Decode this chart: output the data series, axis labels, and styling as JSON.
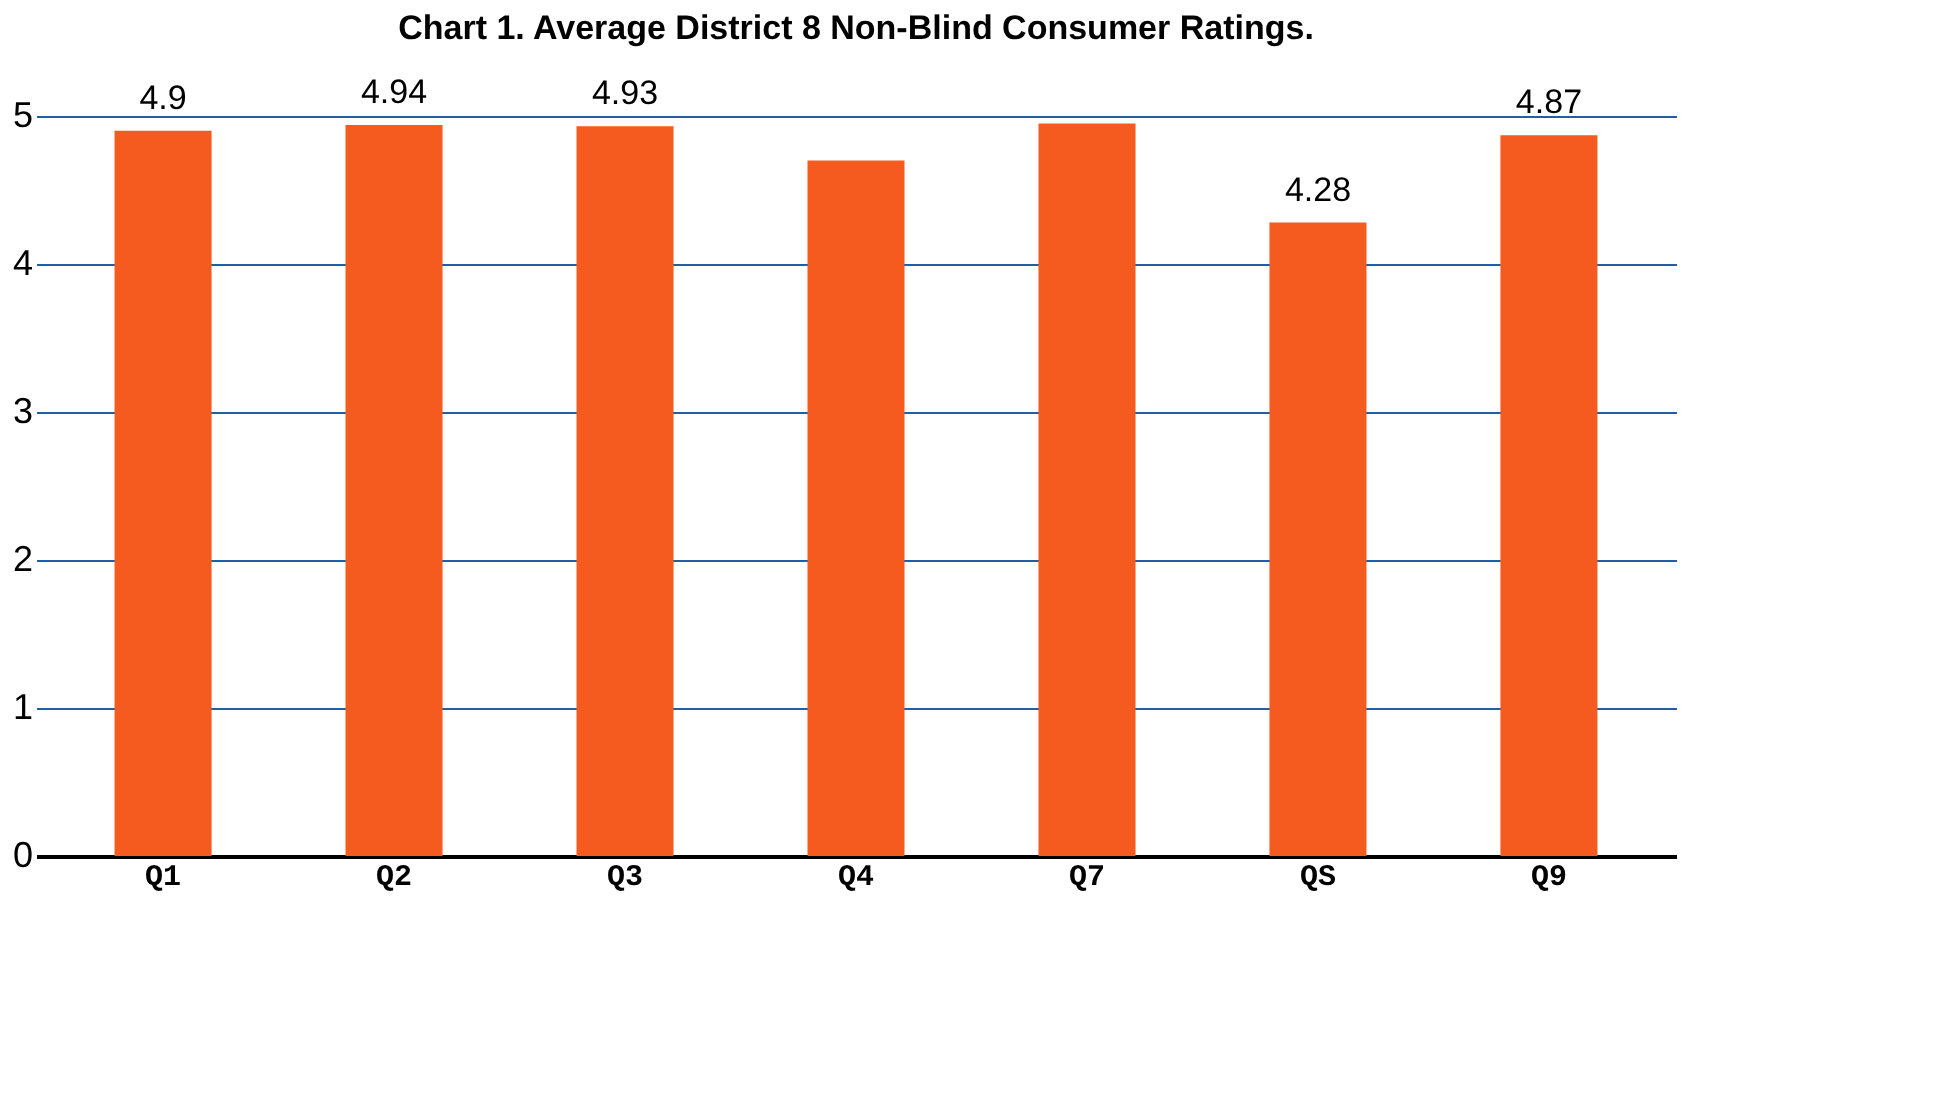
{
  "chart_data": {
    "type": "bar",
    "title": "Chart 1.  Average District 8 Non-Blind Consumer Ratings.",
    "categories": [
      "Q1",
      "Q2",
      "Q3",
      "Q4",
      "Q7",
      "QS",
      "Q9"
    ],
    "values": [
      4.9,
      4.94,
      4.93,
      4.7,
      4.95,
      4.28,
      4.87
    ],
    "value_labels": [
      "4.9",
      "4.94",
      "4.93",
      null,
      null,
      "4.28",
      "4.87"
    ],
    "color": "#f55a1e",
    "ylim": [
      0,
      5
    ],
    "yticks": [
      0,
      1,
      2,
      3,
      4,
      5
    ],
    "grid": "y"
  }
}
